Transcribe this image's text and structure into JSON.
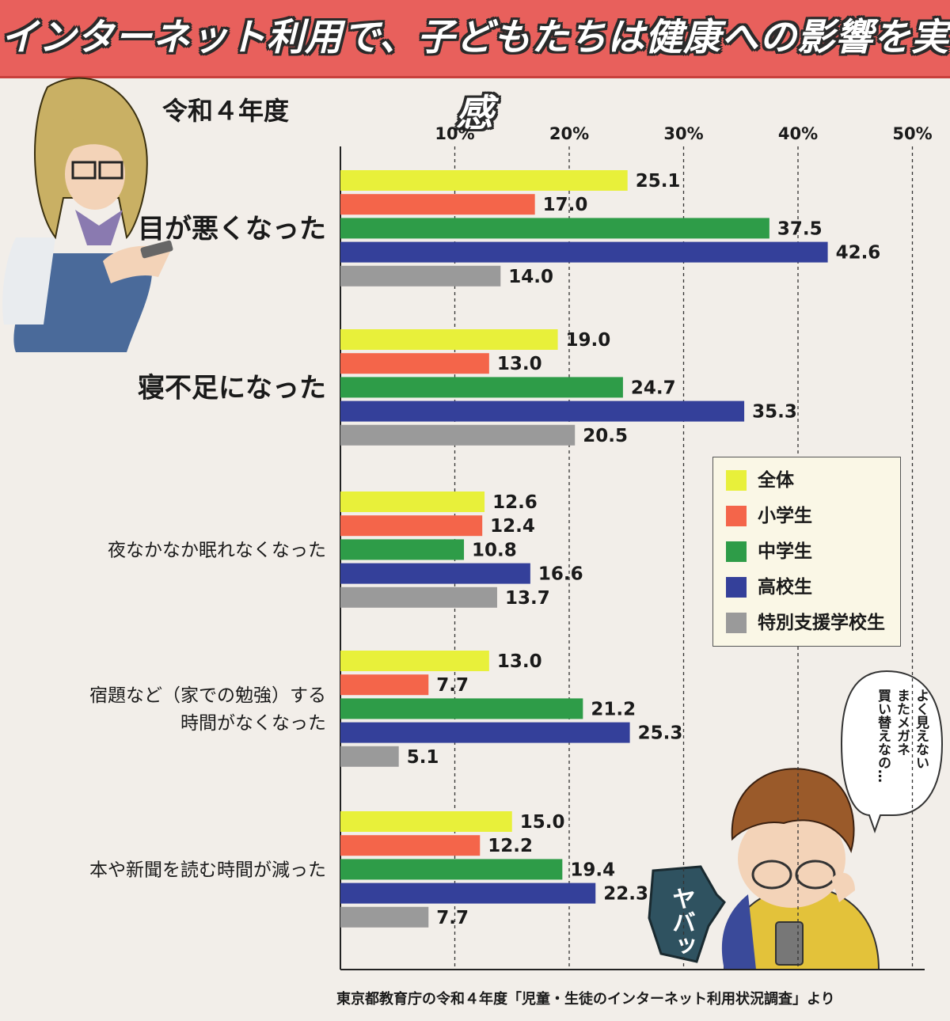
{
  "header": {
    "title": "インターネット利用で、子どもたちは健康への影響を実感",
    "subtitle": "令和４年度"
  },
  "colors": {
    "banner": "#e8605c",
    "background": "#f2eee9"
  },
  "chart_data": {
    "type": "bar",
    "orientation": "horizontal",
    "title": "令和４年度",
    "xlim": [
      0,
      50
    ],
    "xticks": [
      "10%",
      "20%",
      "30%",
      "40%",
      "50%"
    ],
    "grid": true,
    "legend_position": "right",
    "categories": [
      "目が悪くなった",
      "寝不足になった",
      "夜なかなか眠れなくなった",
      "宿題など（家での勉強）する時間がなくなった",
      "本や新聞を読む時間が減った"
    ],
    "series": [
      {
        "name": "全体",
        "color": "#e8f03a",
        "values": [
          25.1,
          19.0,
          12.6,
          13.0,
          15.0
        ],
        "labels": [
          "25.1",
          "19.0",
          "12.6",
          "13.0",
          "15.0"
        ]
      },
      {
        "name": "小学生",
        "color": "#f4654a",
        "values": [
          17.0,
          13.0,
          12.4,
          7.7,
          12.2
        ],
        "labels": [
          "17.0",
          "13.0",
          "12.4",
          "7.7",
          "12.2"
        ]
      },
      {
        "name": "中学生",
        "color": "#2e9c48",
        "values": [
          37.5,
          24.7,
          10.8,
          21.2,
          19.4
        ],
        "labels": [
          "37.5",
          "24.7",
          "10.8",
          "21.2",
          "19.4"
        ]
      },
      {
        "name": "高校生",
        "color": "#34409a",
        "values": [
          42.6,
          35.3,
          16.6,
          25.3,
          22.3
        ],
        "labels": [
          "42.6",
          "35.3",
          "16.6",
          "25.3",
          "22.3"
        ]
      },
      {
        "name": "特別支援学校生",
        "color": "#9a9a9a",
        "values": [
          14.0,
          20.5,
          13.7,
          5.1,
          7.7
        ],
        "labels": [
          "14.0",
          "20.5",
          "13.7",
          "5.1",
          "7.7"
        ]
      }
    ]
  },
  "category_lines": [
    [
      "目が悪くなった"
    ],
    [
      "寝不足になった"
    ],
    [
      "夜なかなか眠れなくなった"
    ],
    [
      "宿題など（家での勉強）する",
      "時間がなくなった"
    ],
    [
      "本や新聞を読む時間が減った"
    ]
  ],
  "source": "東京都教育庁の令和４年度「児童・生徒のインターネット利用状況調査」より",
  "speech_bubbles": {
    "right_lines": [
      "よく見えない",
      "またメガネ",
      "買い替えなの…"
    ],
    "yabai": "ヤバッ"
  }
}
